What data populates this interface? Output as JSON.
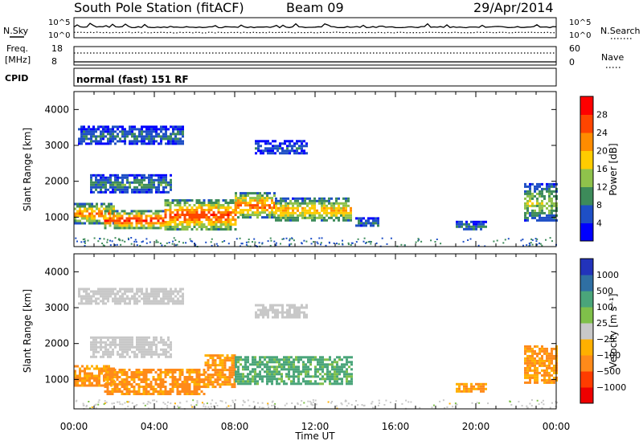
{
  "header": {
    "title": "South Pole Station (fitACF)",
    "beam": "Beam 09",
    "date": "29/Apr/2014"
  },
  "top_panels": {
    "nsky_label": "N.Sky",
    "nsearch_label": "N.Search",
    "noise_ticks_left": [
      "10^5",
      "10^0"
    ],
    "noise_ticks_right": [
      "10^5",
      "10^0"
    ],
    "freq_label_1": "Freq.",
    "freq_label_2": "[MHz]",
    "freq_ticks": [
      "18",
      "8"
    ],
    "nave_label": "Nave",
    "nave_ticks": [
      "60",
      "0"
    ],
    "cpid_label": "CPID",
    "cpid_text": "normal (fast) 151 RF"
  },
  "colors": {
    "power_scale": [
      "#0000ff",
      "#1e4fc6",
      "#3d8b5a",
      "#8fc24b",
      "#ffcc00",
      "#ff8c00",
      "#ff4500",
      "#ff0000"
    ],
    "velocity_scale": [
      "#2233bb",
      "#2f6fa3",
      "#4aa57a",
      "#7fc04a",
      "#c8c8c8",
      "#ffb000",
      "#ff8a1a",
      "#ff3c00",
      "#ee0000"
    ]
  },
  "chart_data": [
    {
      "type": "heatmap",
      "title": "",
      "xlabel": "",
      "ylabel": "Slant Range [km]",
      "colorbar_label": "Power [dB]",
      "colorbar_ticks": [
        "28",
        "24",
        "20",
        "16",
        "12",
        "8",
        "4"
      ],
      "clim": [
        0,
        32
      ],
      "x_ticks": [
        "00:00",
        "04:00",
        "08:00",
        "12:00",
        "16:00",
        "20:00",
        "00:00"
      ],
      "y_ticks": [
        "1000",
        "2000",
        "3000",
        "4000"
      ],
      "ylim": [
        180,
        4500
      ],
      "xlim_hours": [
        0,
        24
      ],
      "echo_regions": [
        {
          "t_start": 0.2,
          "t_end": 5.4,
          "r_min": 3050,
          "r_max": 3550,
          "level": 8
        },
        {
          "t_start": 9.0,
          "t_end": 11.6,
          "r_min": 2750,
          "r_max": 3150,
          "level": 6
        },
        {
          "t_start": 0.8,
          "t_end": 4.8,
          "r_min": 1700,
          "r_max": 2200,
          "level": 10
        },
        {
          "t_start": 0.0,
          "t_end": 2.0,
          "r_min": 850,
          "r_max": 1400,
          "level": 22
        },
        {
          "t_start": 1.5,
          "t_end": 4.5,
          "r_min": 700,
          "r_max": 1200,
          "level": 26
        },
        {
          "t_start": 4.5,
          "t_end": 8.0,
          "r_min": 650,
          "r_max": 1500,
          "level": 25
        },
        {
          "t_start": 8.0,
          "t_end": 10.0,
          "r_min": 1000,
          "r_max": 1700,
          "level": 23
        },
        {
          "t_start": 10.0,
          "t_end": 13.8,
          "r_min": 900,
          "r_max": 1550,
          "level": 19
        },
        {
          "t_start": 14.0,
          "t_end": 15.2,
          "r_min": 750,
          "r_max": 1000,
          "level": 8
        },
        {
          "t_start": 19.0,
          "t_end": 20.5,
          "r_min": 650,
          "r_max": 900,
          "level": 8
        },
        {
          "t_start": 22.4,
          "t_end": 24.0,
          "r_min": 900,
          "r_max": 1950,
          "level": 14
        }
      ]
    },
    {
      "type": "heatmap",
      "title": "",
      "xlabel": "Time UT",
      "ylabel": "Slant Range [km]",
      "colorbar_label": "Velocity [m s⁻¹]",
      "colorbar_ticks": [
        "1000",
        "500",
        "100",
        "25",
        "−25",
        "−100",
        "−500",
        "−1000"
      ],
      "clim": [
        -1000,
        1000
      ],
      "x_ticks": [
        "00:00",
        "04:00",
        "08:00",
        "12:00",
        "16:00",
        "20:00",
        "00:00"
      ],
      "y_ticks": [
        "1000",
        "2000",
        "3000",
        "4000"
      ],
      "ylim": [
        180,
        4500
      ],
      "xlim_hours": [
        0,
        24
      ],
      "echo_regions": [
        {
          "t_start": 0.2,
          "t_end": 5.4,
          "r_min": 3100,
          "r_max": 3550,
          "vel": 10
        },
        {
          "t_start": 9.0,
          "t_end": 11.6,
          "r_min": 2750,
          "r_max": 3100,
          "vel": 10
        },
        {
          "t_start": 0.8,
          "t_end": 4.8,
          "r_min": 1650,
          "r_max": 2200,
          "vel": 10
        },
        {
          "t_start": 0.0,
          "t_end": 2.0,
          "r_min": 850,
          "r_max": 1400,
          "vel": -120
        },
        {
          "t_start": 1.5,
          "t_end": 6.5,
          "r_min": 600,
          "r_max": 1300,
          "vel": -150
        },
        {
          "t_start": 6.5,
          "t_end": 8.0,
          "r_min": 800,
          "r_max": 1700,
          "vel": -120
        },
        {
          "t_start": 8.0,
          "t_end": 13.8,
          "r_min": 900,
          "r_max": 1650,
          "vel": 150
        },
        {
          "t_start": 19.0,
          "t_end": 20.5,
          "r_min": 650,
          "r_max": 900,
          "vel": -120
        },
        {
          "t_start": 22.4,
          "t_end": 24.0,
          "r_min": 900,
          "r_max": 1950,
          "vel": -120
        }
      ]
    }
  ]
}
